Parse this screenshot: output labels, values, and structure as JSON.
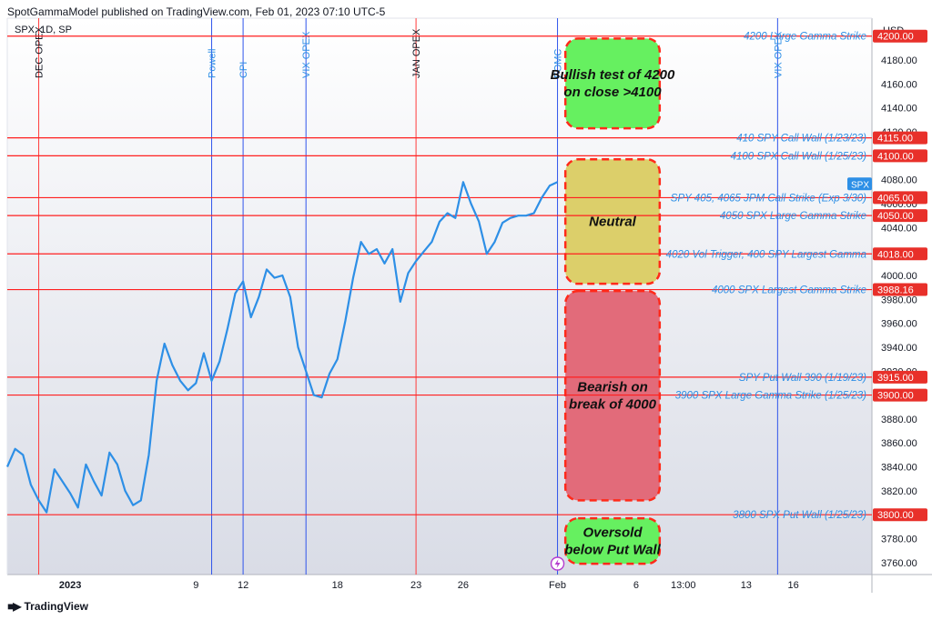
{
  "header": {
    "published": "SpotGammaModel published on TradingView.com, Feb 01, 2023 07:10 UTC-5"
  },
  "footer": {
    "brand": "TradingView",
    "logo_icon": "tradingview-logo-icon"
  },
  "colors": {
    "price_line": "#2d8fe6",
    "level_line": "#ff1f1f",
    "event_line_red": "#ff3b3b",
    "event_line_blue": "#2f54eb",
    "label_blue": "#2d8fe6",
    "price_tag": "#e8302a",
    "zone_green": "#66f060",
    "zone_yellow": "#dccf6a",
    "zone_red": "#e26b7a",
    "zone_border": "#ff2a1a",
    "plot_bg_top": "#ffffff",
    "plot_bg_bottom": "#d9dce6"
  },
  "chart_data": {
    "type": "line",
    "symbol": "SPX, 1D, SP",
    "currency": "USD",
    "current_tag": "SPX",
    "ylim": [
      3750,
      4215
    ],
    "y_ticks": [
      3760,
      3780,
      3800,
      3820,
      3840,
      3860,
      3880,
      3900,
      3920,
      3940,
      3960,
      3980,
      4000,
      4020,
      4040,
      4060,
      4080,
      4100,
      4120,
      4140,
      4160,
      4180,
      4200
    ],
    "y_tick_labels": [
      "3760.00",
      "3780.00",
      "3800.00",
      "3820.00",
      "3840.00",
      "3860.00",
      "3880.00",
      "3900.00",
      "3920.00",
      "3940.00",
      "3960.00",
      "3980.00",
      "4000.00",
      "4020.00",
      "4040.00",
      "4060.00",
      "4080.00",
      "4100.00",
      "4120.00",
      "4140.00",
      "4160.00",
      "4180.00",
      "4200.00"
    ],
    "time_axis": {
      "start": "2022-12-28",
      "end": "2023-02-21"
    },
    "x_ticks": [
      {
        "date": "2023-01-01",
        "label": "2023",
        "bold": true
      },
      {
        "date": "2023-01-09",
        "label": "9"
      },
      {
        "date": "2023-01-12",
        "label": "12"
      },
      {
        "date": "2023-01-18",
        "label": "18"
      },
      {
        "date": "2023-01-23",
        "label": "23"
      },
      {
        "date": "2023-01-26",
        "label": "26"
      },
      {
        "date": "2023-02-01",
        "label": "Feb"
      },
      {
        "date": "2023-02-06",
        "label": "6"
      },
      {
        "date": "2023-02-09",
        "label": "13:00"
      },
      {
        "date": "2023-02-13",
        "label": "13"
      },
      {
        "date": "2023-02-16",
        "label": "16"
      }
    ],
    "series": [
      {
        "x": [
          "2022-12-28",
          "2022-12-28 12:00",
          "2022-12-29",
          "2022-12-29 12:00",
          "2022-12-30",
          "2022-12-30 12:00",
          "2022-12-31",
          "2023-01-01",
          "2023-01-01 12:00",
          "2023-01-02",
          "2023-01-02 12:00",
          "2023-01-03",
          "2023-01-03 12:00",
          "2023-01-04",
          "2023-01-04 12:00",
          "2023-01-05",
          "2023-01-05 12:00",
          "2023-01-06",
          "2023-01-06 12:00",
          "2023-01-07",
          "2023-01-07 12:00",
          "2023-01-08",
          "2023-01-08 12:00",
          "2023-01-09",
          "2023-01-09 12:00",
          "2023-01-10",
          "2023-01-10 12:00",
          "2023-01-11",
          "2023-01-11 12:00",
          "2023-01-12",
          "2023-01-12 12:00",
          "2023-01-13",
          "2023-01-13 12:00",
          "2023-01-14",
          "2023-01-14 12:00",
          "2023-01-15",
          "2023-01-15 12:00",
          "2023-01-16",
          "2023-01-16 12:00",
          "2023-01-17",
          "2023-01-17 12:00",
          "2023-01-18",
          "2023-01-18 12:00",
          "2023-01-19",
          "2023-01-19 12:00",
          "2023-01-20",
          "2023-01-20 12:00",
          "2023-01-21",
          "2023-01-21 12:00",
          "2023-01-22",
          "2023-01-22 12:00",
          "2023-01-23",
          "2023-01-23 12:00",
          "2023-01-24",
          "2023-01-24 12:00",
          "2023-01-25",
          "2023-01-25 12:00",
          "2023-01-26",
          "2023-01-26 12:00",
          "2023-01-27",
          "2023-01-27 12:00",
          "2023-01-28",
          "2023-01-28 12:00",
          "2023-01-29",
          "2023-01-29 12:00",
          "2023-01-30",
          "2023-01-30 12:00",
          "2023-01-31",
          "2023-01-31 12:00",
          "2023-02-01"
        ],
        "values": [
          3840,
          3855,
          3850,
          3825,
          3812,
          3802,
          3838,
          3818,
          3806,
          3842,
          3828,
          3816,
          3852,
          3842,
          3820,
          3808,
          3812,
          3850,
          3912,
          3943,
          3925,
          3912,
          3904,
          3910,
          3935,
          3912,
          3928,
          3955,
          3985,
          3995,
          3965,
          3982,
          4005,
          3998,
          4000,
          3982,
          3940,
          3920,
          3900,
          3898,
          3918,
          3930,
          3962,
          3998,
          4028,
          4018,
          4022,
          4010,
          4022,
          3978,
          4002,
          4012,
          4020,
          4028,
          4045,
          4052,
          4048,
          4078,
          4060,
          4045,
          4018,
          4028,
          4044,
          4048,
          4050,
          4050,
          4052,
          4065,
          4075,
          4078
        ]
      }
    ],
    "levels": [
      {
        "value": 4200,
        "label": "4200 Large Gamma Strike",
        "tag": "4200.00",
        "line_x_end": 0.82
      },
      {
        "value": 4115,
        "label": "410 SPY Call Wall (1/23/23)",
        "tag": "4115.00"
      },
      {
        "value": 4100,
        "label": "4100 SPX Call Wall (1/25/23)",
        "tag": "4100.00"
      },
      {
        "value": 4065,
        "label": "SPY 405, 4065 JPM Call Strike (Exp 3/30)",
        "tag": "4065.00",
        "line_x_end": 0.745
      },
      {
        "value": 4050,
        "label": "4050 SPX Large Gamma Strike",
        "tag": "4050.00"
      },
      {
        "value": 4018,
        "label": "4020 Vol Trigger, 400 SPY Largest Gamma",
        "tag": "4018.00",
        "line_x_end": 0.745
      },
      {
        "value": 3988.16,
        "label": "4000 SPX Largest Gamma Strike",
        "tag": "3988.16"
      },
      {
        "value": 3915,
        "label": "SPY Put Wall 390 (1/19/23)",
        "tag": "3915.00"
      },
      {
        "value": 3900,
        "label": "3900 SPX Large Gamma Strike (1/25/23)",
        "tag": "3900.00",
        "line_x_end": 0.755
      },
      {
        "value": 3800,
        "label": "3800 SPX Put Wall (1/25/23)",
        "tag": "3800.00"
      }
    ],
    "events": [
      {
        "date": "2022-12-30",
        "label": "DEC OPEX",
        "style": "red",
        "label_color": "black"
      },
      {
        "date": "2023-01-10",
        "label": "Powell",
        "style": "blue"
      },
      {
        "date": "2023-01-12",
        "label": "CPI",
        "style": "blue"
      },
      {
        "date": "2023-01-16",
        "label": "VIX OPEX",
        "style": "blue"
      },
      {
        "date": "2023-01-23",
        "label": "JAN OPEX",
        "style": "red",
        "label_color": "black"
      },
      {
        "date": "2023-02-01",
        "label": "FOMC",
        "style": "blue"
      },
      {
        "date": "2023-02-15",
        "label": "VIX OPEX",
        "style": "blue"
      }
    ],
    "zones": [
      {
        "from": 4123,
        "to": 4198,
        "color": "green",
        "label": [
          "Bullish test of 4200",
          "on close >4100"
        ]
      },
      {
        "from": 3993,
        "to": 4097,
        "color": "yellow",
        "label": [
          "Neutral"
        ]
      },
      {
        "from": 3812,
        "to": 3987,
        "color": "red",
        "label": [
          "Bearish on",
          "break of 4000"
        ]
      },
      {
        "from": 3759,
        "to": 3797,
        "color": "green",
        "label": [
          "Oversold",
          "below Put Wall"
        ]
      }
    ],
    "zone_date_range": [
      "2023-02-01 12:00",
      "2023-02-07 12:00"
    ]
  }
}
